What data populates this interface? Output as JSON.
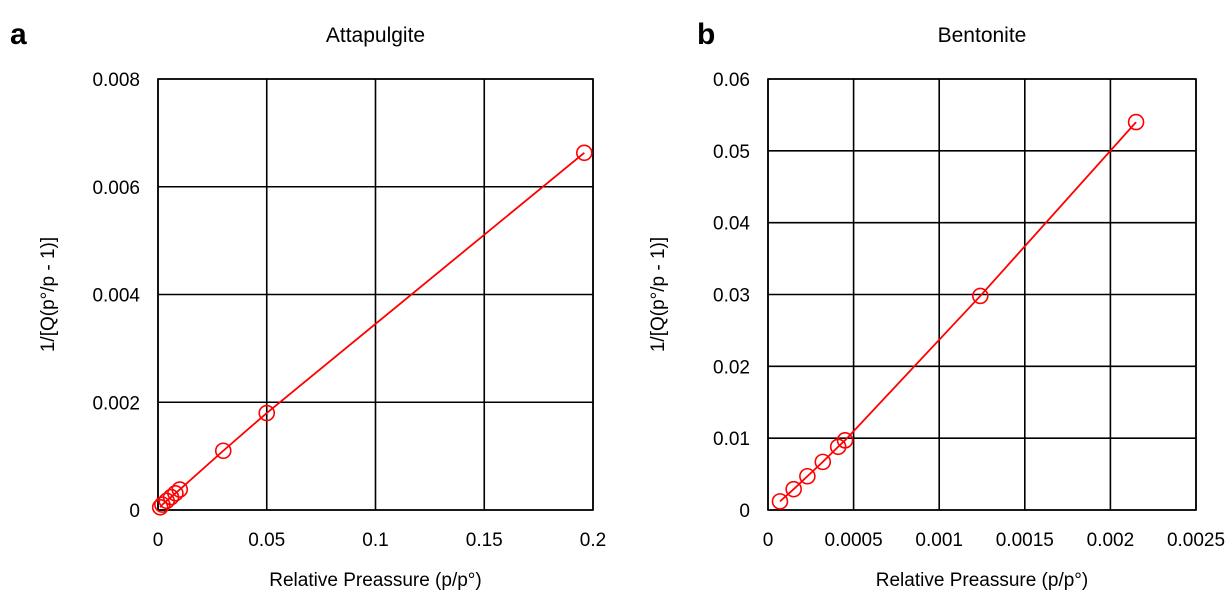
{
  "chart_data": [
    {
      "panel_label": "a",
      "type": "scatter",
      "title": "Attapulgite",
      "xlabel": "Relative Preassure (p/p°)",
      "ylabel": "1/[Q(p°/p - 1)]",
      "xlim": [
        0,
        0.2
      ],
      "ylim": [
        0,
        0.008
      ],
      "xticks": [
        0,
        0.05,
        0.1,
        0.15,
        0.2
      ],
      "yticks": [
        0,
        0.002,
        0.004,
        0.006,
        0.008
      ],
      "xtick_labels": [
        "0",
        "0.05",
        "0.1",
        "0.15",
        "0.2"
      ],
      "ytick_labels": [
        "0",
        "0.002",
        "0.004",
        "0.006",
        "0.008"
      ],
      "grid": true,
      "series": [
        {
          "color": "#ff0000",
          "marker": "open-circle",
          "line": "straight",
          "points": [
            {
              "x": 0.001,
              "y": 5e-05
            },
            {
              "x": 0.002,
              "y": 0.0001
            },
            {
              "x": 0.004,
              "y": 0.00017
            },
            {
              "x": 0.006,
              "y": 0.00024
            },
            {
              "x": 0.008,
              "y": 0.00031
            },
            {
              "x": 0.01,
              "y": 0.00038
            },
            {
              "x": 0.03,
              "y": 0.0011
            },
            {
              "x": 0.05,
              "y": 0.0018
            },
            {
              "x": 0.196,
              "y": 0.00663
            }
          ]
        }
      ]
    },
    {
      "panel_label": "b",
      "type": "scatter",
      "title": "Bentonite",
      "xlabel": "Relative Preassure (p/p°)",
      "ylabel": "1/[Q(p°/p - 1)]",
      "xlim": [
        0,
        0.0025
      ],
      "ylim": [
        0,
        0.06
      ],
      "xticks": [
        0,
        0.0005,
        0.001,
        0.0015,
        0.002,
        0.0025
      ],
      "yticks": [
        0,
        0.01,
        0.02,
        0.03,
        0.04,
        0.05,
        0.06
      ],
      "xtick_labels": [
        "0",
        "0.0005",
        "0.001",
        "0.0015",
        "0.002",
        "0.0025"
      ],
      "ytick_labels": [
        "0",
        "0.01",
        "0.02",
        "0.03",
        "0.04",
        "0.05",
        "0.06"
      ],
      "grid": true,
      "series": [
        {
          "color": "#ff0000",
          "marker": "open-circle",
          "line": "straight",
          "points": [
            {
              "x": 7e-05,
              "y": 0.0012
            },
            {
              "x": 0.00015,
              "y": 0.0029
            },
            {
              "x": 0.00023,
              "y": 0.0047
            },
            {
              "x": 0.00032,
              "y": 0.0067
            },
            {
              "x": 0.00041,
              "y": 0.0088
            },
            {
              "x": 0.00045,
              "y": 0.0097
            },
            {
              "x": 0.00124,
              "y": 0.0298
            },
            {
              "x": 0.00215,
              "y": 0.054
            }
          ]
        }
      ]
    }
  ]
}
